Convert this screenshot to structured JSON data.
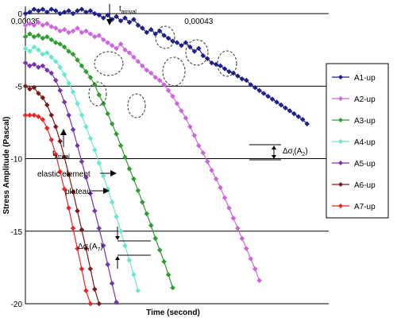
{
  "chart_data": {
    "type": "line",
    "title": "",
    "xlabel": "Time (second)",
    "ylabel": "Stress Amplitude (Pascal)",
    "ylim": [
      -20,
      0.5
    ],
    "y_ticks": [
      0,
      -5,
      -10,
      -15,
      -20
    ],
    "y_tick_labels": [
      "0",
      "-5",
      "-10",
      "-15",
      "-20"
    ],
    "xlim": [
      0.00035,
      0.00049
    ],
    "x_tick_labels": [
      {
        "text": "0,00035",
        "x": 0.00035
      },
      {
        "text": "0,00043",
        "x": 0.00043
      }
    ],
    "grid": "horizontal",
    "legend_position": "right",
    "series": [
      {
        "name": "A1-up",
        "color": "#1f1f8f",
        "marker": "diamond",
        "points": [
          [
            0.00035,
            0.0
          ],
          [
            0.000352,
            0.1
          ],
          [
            0.000354,
            0.3
          ],
          [
            0.000356,
            0.2
          ],
          [
            0.000358,
            0.3
          ],
          [
            0.00036,
            0.1
          ],
          [
            0.000362,
            0.3
          ],
          [
            0.000364,
            0.2
          ],
          [
            0.000366,
            0.0
          ],
          [
            0.000368,
            0.1
          ],
          [
            0.00037,
            0.2
          ],
          [
            0.000372,
            0.0
          ],
          [
            0.000374,
            0.2
          ],
          [
            0.000376,
            0.3
          ],
          [
            0.000378,
            0.1
          ],
          [
            0.00038,
            0.2
          ],
          [
            0.000382,
            0.0
          ],
          [
            0.000384,
            -0.1
          ],
          [
            0.000386,
            -0.3
          ],
          [
            0.000388,
            -0.1
          ],
          [
            0.00039,
            -0.4
          ],
          [
            0.000392,
            -0.2
          ],
          [
            0.000394,
            -0.5
          ],
          [
            0.000396,
            -0.3
          ],
          [
            0.000398,
            -0.6
          ],
          [
            0.0004,
            -0.4
          ],
          [
            0.000402,
            -0.8
          ],
          [
            0.000404,
            -1.0
          ],
          [
            0.000406,
            -1.3
          ],
          [
            0.000408,
            -1.1
          ],
          [
            0.00041,
            -1.4
          ],
          [
            0.000412,
            -1.2
          ],
          [
            0.000414,
            -1.5
          ],
          [
            0.000416,
            -1.7
          ],
          [
            0.000418,
            -1.9
          ],
          [
            0.00042,
            -2.0
          ],
          [
            0.000422,
            -2.2
          ],
          [
            0.000424,
            -2.0
          ],
          [
            0.000426,
            -2.3
          ],
          [
            0.000428,
            -2.6
          ],
          [
            0.00043,
            -2.4
          ],
          [
            0.000432,
            -2.9
          ],
          [
            0.000434,
            -3.1
          ],
          [
            0.000436,
            -3.4
          ],
          [
            0.000438,
            -3.5
          ],
          [
            0.00044,
            -3.6
          ],
          [
            0.000442,
            -3.8
          ],
          [
            0.000444,
            -4.0
          ],
          [
            0.000446,
            -4.1
          ],
          [
            0.000448,
            -4.3
          ],
          [
            0.00045,
            -4.5
          ],
          [
            0.000452,
            -4.6
          ],
          [
            0.000454,
            -4.9
          ],
          [
            0.000456,
            -5.1
          ],
          [
            0.000458,
            -5.3
          ],
          [
            0.00046,
            -5.5
          ],
          [
            0.000462,
            -5.7
          ],
          [
            0.000464,
            -5.9
          ],
          [
            0.000466,
            -6.1
          ],
          [
            0.000468,
            -6.3
          ],
          [
            0.00047,
            -6.5
          ],
          [
            0.000472,
            -6.7
          ],
          [
            0.000474,
            -6.9
          ],
          [
            0.000476,
            -7.1
          ],
          [
            0.000478,
            -7.3
          ],
          [
            0.00048,
            -7.6
          ]
        ]
      },
      {
        "name": "A2-up",
        "color": "#cc66dd",
        "marker": "diamond",
        "points": [
          [
            0.00035,
            -0.8
          ],
          [
            0.000352,
            -0.7
          ],
          [
            0.000354,
            -0.8
          ],
          [
            0.000356,
            -0.6
          ],
          [
            0.000358,
            -0.8
          ],
          [
            0.00036,
            -0.7
          ],
          [
            0.000362,
            -0.9
          ],
          [
            0.000364,
            -1.0
          ],
          [
            0.000366,
            -1.2
          ],
          [
            0.000368,
            -1.1
          ],
          [
            0.00037,
            -1.3
          ],
          [
            0.000372,
            -1.2
          ],
          [
            0.000374,
            -1.0
          ],
          [
            0.000376,
            -1.3
          ],
          [
            0.000378,
            -1.2
          ],
          [
            0.00038,
            -1.4
          ],
          [
            0.000382,
            -1.6
          ],
          [
            0.000384,
            -1.5
          ],
          [
            0.000386,
            -1.8
          ],
          [
            0.000388,
            -2.0
          ],
          [
            0.00039,
            -2.2
          ],
          [
            0.000392,
            -2.4
          ],
          [
            0.000394,
            -2.1
          ],
          [
            0.000396,
            -2.5
          ],
          [
            0.000398,
            -2.7
          ],
          [
            0.0004,
            -3.0
          ],
          [
            0.000402,
            -3.3
          ],
          [
            0.000404,
            -3.6
          ],
          [
            0.000406,
            -3.9
          ],
          [
            0.000408,
            -4.1
          ],
          [
            0.00041,
            -4.4
          ],
          [
            0.000412,
            -4.6
          ],
          [
            0.000414,
            -4.9
          ],
          [
            0.000416,
            -5.3
          ],
          [
            0.000418,
            -5.7
          ],
          [
            0.00042,
            -6.2
          ],
          [
            0.000422,
            -6.7
          ],
          [
            0.000424,
            -7.2
          ],
          [
            0.000426,
            -7.8
          ],
          [
            0.000428,
            -8.4
          ],
          [
            0.00043,
            -9.1
          ],
          [
            0.000432,
            -9.6
          ],
          [
            0.000434,
            -10.2
          ],
          [
            0.000436,
            -10.8
          ],
          [
            0.000438,
            -11.4
          ],
          [
            0.00044,
            -12.0
          ],
          [
            0.000442,
            -12.7
          ],
          [
            0.000444,
            -13.4
          ],
          [
            0.000446,
            -14.1
          ],
          [
            0.000448,
            -14.8
          ],
          [
            0.00045,
            -15.5
          ],
          [
            0.000452,
            -16.2
          ],
          [
            0.000454,
            -16.9
          ],
          [
            0.000456,
            -17.6
          ],
          [
            0.000458,
            -18.4
          ]
        ]
      },
      {
        "name": "A3-up",
        "color": "#2e9e2e",
        "marker": "diamond",
        "points": [
          [
            0.00035,
            -1.6
          ],
          [
            0.000352,
            -1.4
          ],
          [
            0.000354,
            -1.6
          ],
          [
            0.000356,
            -1.5
          ],
          [
            0.000358,
            -1.7
          ],
          [
            0.00036,
            -1.6
          ],
          [
            0.000362,
            -1.8
          ],
          [
            0.000364,
            -2.0
          ],
          [
            0.000366,
            -2.1
          ],
          [
            0.000368,
            -2.3
          ],
          [
            0.00037,
            -2.6
          ],
          [
            0.000372,
            -2.8
          ],
          [
            0.000374,
            -3.2
          ],
          [
            0.000376,
            -3.6
          ],
          [
            0.000378,
            -4.0
          ],
          [
            0.00038,
            -4.4
          ],
          [
            0.000382,
            -4.9
          ],
          [
            0.000384,
            -5.6
          ],
          [
            0.000386,
            -6.2
          ],
          [
            0.000388,
            -6.9
          ],
          [
            0.00039,
            -7.6
          ],
          [
            0.000392,
            -8.3
          ],
          [
            0.000394,
            -9.1
          ],
          [
            0.000396,
            -9.9
          ],
          [
            0.000398,
            -10.7
          ],
          [
            0.0004,
            -11.4
          ],
          [
            0.000402,
            -12.2
          ],
          [
            0.000404,
            -13.0
          ],
          [
            0.000406,
            -13.8
          ],
          [
            0.000408,
            -14.6
          ],
          [
            0.00041,
            -15.5
          ],
          [
            0.000412,
            -16.3
          ],
          [
            0.000414,
            -17.1
          ],
          [
            0.000416,
            -18.0
          ],
          [
            0.000418,
            -18.9
          ]
        ]
      },
      {
        "name": "A4-up",
        "color": "#66e8cc",
        "marker": "diamond",
        "points": [
          [
            0.00035,
            -2.4
          ],
          [
            0.000352,
            -2.6
          ],
          [
            0.000354,
            -2.3
          ],
          [
            0.000356,
            -2.5
          ],
          [
            0.000358,
            -2.8
          ],
          [
            0.00036,
            -2.7
          ],
          [
            0.000362,
            -3.0
          ],
          [
            0.000364,
            -3.3
          ],
          [
            0.000366,
            -3.7
          ],
          [
            0.000368,
            -4.2
          ],
          [
            0.00037,
            -4.8
          ],
          [
            0.000372,
            -5.4
          ],
          [
            0.000374,
            -6.2
          ],
          [
            0.000376,
            -7.0
          ],
          [
            0.000378,
            -7.8
          ],
          [
            0.00038,
            -8.6
          ],
          [
            0.000382,
            -9.4
          ],
          [
            0.000384,
            -10.3
          ],
          [
            0.000386,
            -11.2
          ],
          [
            0.000388,
            -12.1
          ],
          [
            0.00039,
            -13.0
          ],
          [
            0.000392,
            -14.0
          ],
          [
            0.000394,
            -15.0
          ],
          [
            0.000396,
            -16.0
          ],
          [
            0.000398,
            -17.0
          ],
          [
            0.0004,
            -18.0
          ],
          [
            0.000402,
            -19.1
          ]
        ]
      },
      {
        "name": "A5-up",
        "color": "#7733aa",
        "marker": "diamond",
        "points": [
          [
            0.00035,
            -3.4
          ],
          [
            0.000352,
            -3.6
          ],
          [
            0.000354,
            -3.5
          ],
          [
            0.000356,
            -3.7
          ],
          [
            0.000358,
            -3.6
          ],
          [
            0.00036,
            -3.9
          ],
          [
            0.000362,
            -4.1
          ],
          [
            0.000364,
            -4.6
          ],
          [
            0.000366,
            -5.3
          ],
          [
            0.000368,
            -6.1
          ],
          [
            0.00037,
            -7.0
          ],
          [
            0.000372,
            -8.0
          ],
          [
            0.000374,
            -9.1
          ],
          [
            0.000376,
            -10.2
          ],
          [
            0.000378,
            -11.3
          ],
          [
            0.00038,
            -12.4
          ],
          [
            0.000382,
            -13.6
          ],
          [
            0.000384,
            -14.8
          ],
          [
            0.000386,
            -16.0
          ],
          [
            0.000388,
            -17.3
          ],
          [
            0.00039,
            -18.6
          ],
          [
            0.000392,
            -19.9
          ]
        ]
      },
      {
        "name": "A6-up",
        "color": "#7a1a1a",
        "marker": "diamond",
        "points": [
          [
            0.00035,
            -5.0
          ],
          [
            0.000352,
            -5.2
          ],
          [
            0.000354,
            -5.1
          ],
          [
            0.000356,
            -5.5
          ],
          [
            0.000358,
            -5.8
          ],
          [
            0.00036,
            -6.3
          ],
          [
            0.000362,
            -7.0
          ],
          [
            0.000364,
            -7.8
          ],
          [
            0.000366,
            -8.8
          ],
          [
            0.000368,
            -9.9
          ],
          [
            0.00037,
            -11.1
          ],
          [
            0.000372,
            -12.3
          ],
          [
            0.000374,
            -13.6
          ],
          [
            0.000376,
            -14.9
          ],
          [
            0.000378,
            -16.2
          ],
          [
            0.00038,
            -17.6
          ],
          [
            0.000382,
            -19.0
          ],
          [
            0.000384,
            -20.0
          ]
        ]
      },
      {
        "name": "A7-up",
        "color": "#ee2222",
        "marker": "diamond",
        "points": [
          [
            0.00035,
            -7.0
          ],
          [
            0.000352,
            -7.0
          ],
          [
            0.000354,
            -7.0
          ],
          [
            0.000356,
            -7.1
          ],
          [
            0.000358,
            -7.3
          ],
          [
            0.00036,
            -7.9
          ],
          [
            0.000362,
            -8.7
          ],
          [
            0.000364,
            -9.7
          ],
          [
            0.000366,
            -10.9
          ],
          [
            0.000368,
            -12.1
          ],
          [
            0.00037,
            -13.4
          ],
          [
            0.000372,
            -14.8
          ],
          [
            0.000374,
            -16.2
          ],
          [
            0.000376,
            -17.6
          ],
          [
            0.000378,
            -19.1
          ],
          [
            0.00038,
            -20.0
          ]
        ]
      }
    ],
    "annotations": {
      "t_arrival_top": {
        "main": "t",
        "sub": "arrival"
      },
      "t_arrival_left": {
        "main": "t",
        "sub": "arrival"
      },
      "elastic_element": "elastic element",
      "plateau": "plateau",
      "delta_a2": {
        "main": "Δσ",
        "sub": "i",
        "suffix": "(A",
        "sub2": "2",
        "end": ")"
      },
      "delta_a7": {
        "main": "Δσ",
        "sub": "i",
        "suffix": "(A",
        "sub2": "7",
        "end": ")"
      }
    }
  }
}
